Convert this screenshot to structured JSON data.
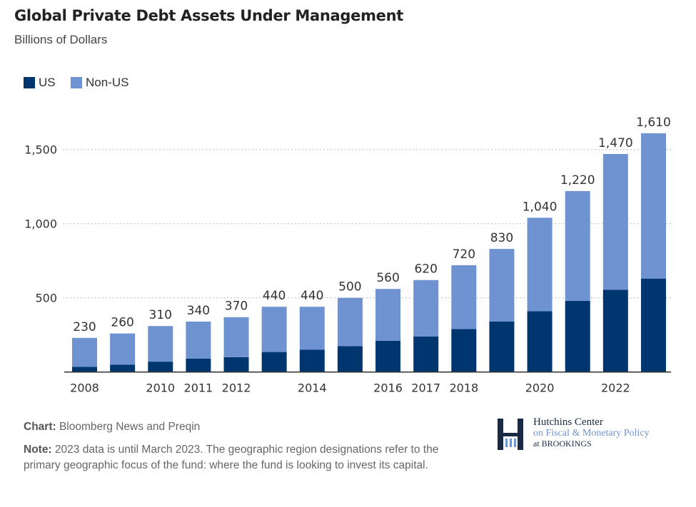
{
  "title": "Global Private Debt Assets Under Management",
  "subtitle": "Billions of Dollars",
  "legend": [
    {
      "label": "US",
      "color": "#003670"
    },
    {
      "label": "Non-US",
      "color": "#6f93d0"
    }
  ],
  "chart_data": {
    "type": "bar",
    "stacked": true,
    "title": "Global Private Debt Assets Under Management",
    "subtitle": "Billions of Dollars",
    "categories": [
      "2008",
      "2009",
      "2010",
      "2011",
      "2012",
      "2013",
      "2014",
      "2015",
      "2016",
      "2017",
      "2018",
      "2019",
      "2020",
      "2021",
      "2022",
      "2023"
    ],
    "x_tick_labels": [
      "2008",
      "",
      "2010",
      "2011",
      "2012",
      "",
      "2014",
      "",
      "2016",
      "2017",
      "2018",
      "",
      "2020",
      "",
      "2022",
      ""
    ],
    "totals": [
      230,
      260,
      310,
      340,
      370,
      440,
      440,
      500,
      560,
      620,
      720,
      830,
      1040,
      1220,
      1470,
      1610
    ],
    "total_labels": [
      "230",
      "260",
      "310",
      "340",
      "370",
      "440",
      "440",
      "500",
      "560",
      "620",
      "720",
      "830",
      "1,040",
      "1,220",
      "1,470",
      "1,610"
    ],
    "series": [
      {
        "name": "US",
        "values": [
          35,
          50,
          70,
          90,
          100,
          135,
          150,
          175,
          210,
          240,
          290,
          340,
          410,
          480,
          555,
          630
        ]
      },
      {
        "name": "Non-US",
        "values": [
          195,
          210,
          240,
          250,
          270,
          305,
          290,
          325,
          350,
          380,
          430,
          490,
          630,
          740,
          915,
          980
        ]
      }
    ],
    "yticks": [
      500,
      1000,
      1500
    ],
    "ytick_labels": [
      "500",
      "1,000",
      "1,500"
    ],
    "ylim": [
      0,
      1650
    ],
    "grid": true,
    "legend_position": "top-left"
  },
  "footer": {
    "chart_label": "Chart:",
    "chart_source": "Bloomberg News and Preqin",
    "note_label": "Note:",
    "note_text": "2023 data is until March 2023. The geographic region designations refer to the primary geographic focus of the fund: where the fund is looking to invest its capital."
  },
  "logo": {
    "line1": "Hutchins Center",
    "line2": "on Fiscal & Monetary Policy",
    "line3": "at BROOKINGS"
  }
}
